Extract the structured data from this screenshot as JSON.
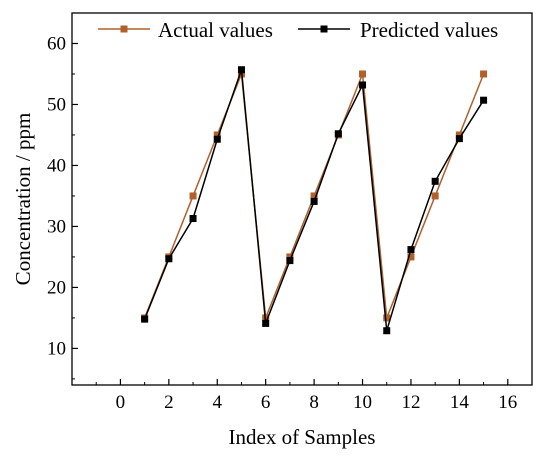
{
  "chart_data": {
    "type": "line",
    "title": "",
    "xlabel": "Index of Samples",
    "ylabel": "Concentration / ppm",
    "xlim": [
      -2,
      17
    ],
    "ylim": [
      4,
      65
    ],
    "x_ticks": [
      0,
      2,
      4,
      6,
      8,
      10,
      12,
      14,
      16
    ],
    "y_ticks": [
      10,
      20,
      30,
      40,
      50,
      60
    ],
    "x": [
      1,
      2,
      3,
      4,
      5,
      6,
      7,
      8,
      9,
      10,
      11,
      12,
      13,
      14,
      15
    ],
    "series": [
      {
        "name": "Actual values",
        "color": "#b0602a",
        "marker": "square",
        "values": [
          15,
          25,
          35,
          45,
          55,
          15,
          25,
          35,
          45,
          55,
          15,
          25,
          35,
          45,
          55
        ]
      },
      {
        "name": "Predicted values",
        "color": "#000000",
        "marker": "square",
        "values": [
          14.8,
          24.7,
          31.3,
          44.3,
          55.7,
          14.1,
          24.4,
          34.1,
          45.2,
          53.2,
          12.9,
          26.2,
          37.4,
          44.4,
          50.7
        ]
      }
    ],
    "legend_position": "top",
    "grid": false
  }
}
